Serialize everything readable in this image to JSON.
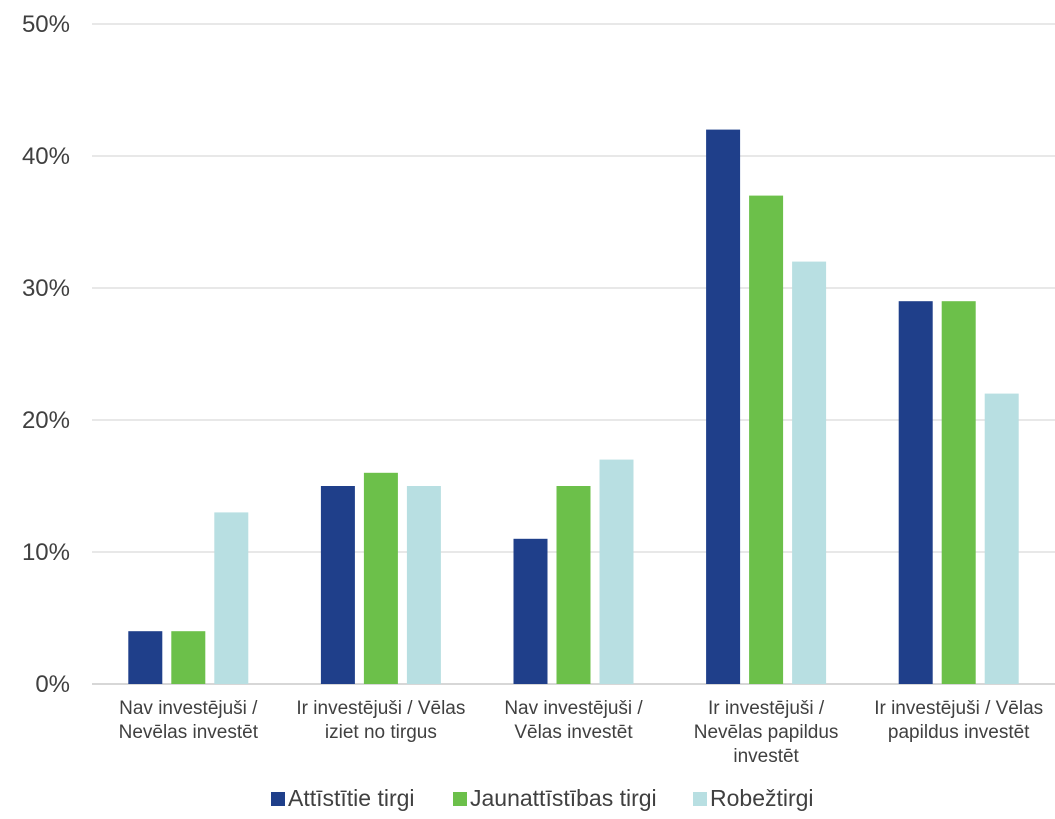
{
  "chart_data": {
    "type": "bar",
    "title": "",
    "xlabel": "",
    "ylabel": "",
    "ylim": [
      0,
      50
    ],
    "y_ticks": [
      "0%",
      "10%",
      "20%",
      "30%",
      "40%",
      "50%"
    ],
    "y_tick_values": [
      0,
      10,
      20,
      30,
      40,
      50
    ],
    "grid": true,
    "legend_position": "bottom",
    "categories": [
      [
        "Nav investējuši /",
        "Nevēlas investēt"
      ],
      [
        "Ir investējuši / Vēlas",
        "iziet no tirgus"
      ],
      [
        "Nav investējuši /",
        "Vēlas investēt"
      ],
      [
        "Ir investējuši /",
        "Nevēlas papildus",
        "investēt"
      ],
      [
        "Ir investējuši / Vēlas",
        "papildus investēt"
      ]
    ],
    "series": [
      {
        "name": "Attīstītie tirgi",
        "color": "#1f3f8a",
        "values": [
          4,
          15,
          11,
          42,
          29
        ]
      },
      {
        "name": "Jaunattīstības tirgi",
        "color": "#6cc04a",
        "values": [
          4,
          16,
          15,
          37,
          29
        ]
      },
      {
        "name": "Robežtirgi",
        "color": "#b8dfe2",
        "values": [
          13,
          15,
          17,
          32,
          22
        ]
      }
    ]
  }
}
